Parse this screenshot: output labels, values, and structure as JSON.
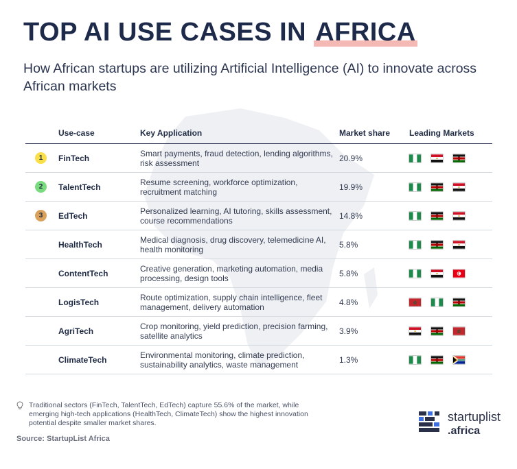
{
  "title_main": "TOP AI USE CASES IN ",
  "title_highlight": "AFRICA",
  "subtitle": "How African startups are utilizing Artificial Intelligence (AI) to innovate across African markets",
  "columns": [
    "Use-case",
    "Key Application",
    "Market share",
    "Leading Markets"
  ],
  "rank_colors": {
    "1": "#f9e04a",
    "2": "#79db7e",
    "3": "#d9a15c"
  },
  "chart_data": {
    "type": "table",
    "title": "TOP AI USE CASES IN AFRICA",
    "rows": [
      {
        "rank": "1",
        "use_case": "FinTech",
        "application": "Smart payments, fraud detection, lending algorithms, risk assessment",
        "share": "20.9%",
        "value": 20.9,
        "flags": [
          "nigeria",
          "egypt",
          "kenya"
        ]
      },
      {
        "rank": "2",
        "use_case": "TalentTech",
        "application": "Resume screening, workforce optimization, recruitment matching",
        "share": "19.9%",
        "value": 19.9,
        "flags": [
          "nigeria",
          "kenya",
          "egypt"
        ]
      },
      {
        "rank": "3",
        "use_case": "EdTech",
        "application": "Personalized learning, AI tutoring, skills assessment, course recommendations",
        "share": "14.8%",
        "value": 14.8,
        "flags": [
          "nigeria",
          "kenya",
          "egypt"
        ]
      },
      {
        "rank": "",
        "use_case": "HealthTech",
        "application": "Medical diagnosis, drug discovery, telemedicine AI, health monitoring",
        "share": "5.8%",
        "value": 5.8,
        "flags": [
          "nigeria",
          "kenya",
          "egypt"
        ]
      },
      {
        "rank": "",
        "use_case": "ContentTech",
        "application": "Creative generation, marketing automation, media processing, design tools",
        "share": "5.8%",
        "value": 5.8,
        "flags": [
          "nigeria",
          "egypt",
          "tunisia"
        ]
      },
      {
        "rank": "",
        "use_case": "LogisTech",
        "application": "Route optimization, supply chain intelligence, fleet management, delivery automation",
        "share": "4.8%",
        "value": 4.8,
        "flags": [
          "morocco",
          "nigeria",
          "kenya"
        ]
      },
      {
        "rank": "",
        "use_case": "AgriTech",
        "application": "Crop monitoring, yield prediction, precision farming, satellite analytics",
        "share": "3.9%",
        "value": 3.9,
        "flags": [
          "egypt",
          "kenya",
          "morocco"
        ]
      },
      {
        "rank": "",
        "use_case": "ClimateTech",
        "application": "Environmental monitoring, climate prediction, sustainability analytics, waste management",
        "share": "1.3%",
        "value": 1.3,
        "flags": [
          "nigeria",
          "kenya",
          "south-africa"
        ]
      }
    ]
  },
  "footnote": "Traditional sectors (FinTech, TalentTech, EdTech) capture 55.6% of the market, while emerging high-tech applications (HealthTech, ClimateTech) show the highest innovation potential despite smaller market shares.",
  "source": "Source: StartupList Africa",
  "logo": {
    "name": "startuplist",
    "tld": ".africa"
  },
  "colors": {
    "title": "#1e2a4a",
    "highlight": "#f4b9b4",
    "logo_dark": "#2a3047",
    "logo_blue": "#3d6fe0"
  }
}
